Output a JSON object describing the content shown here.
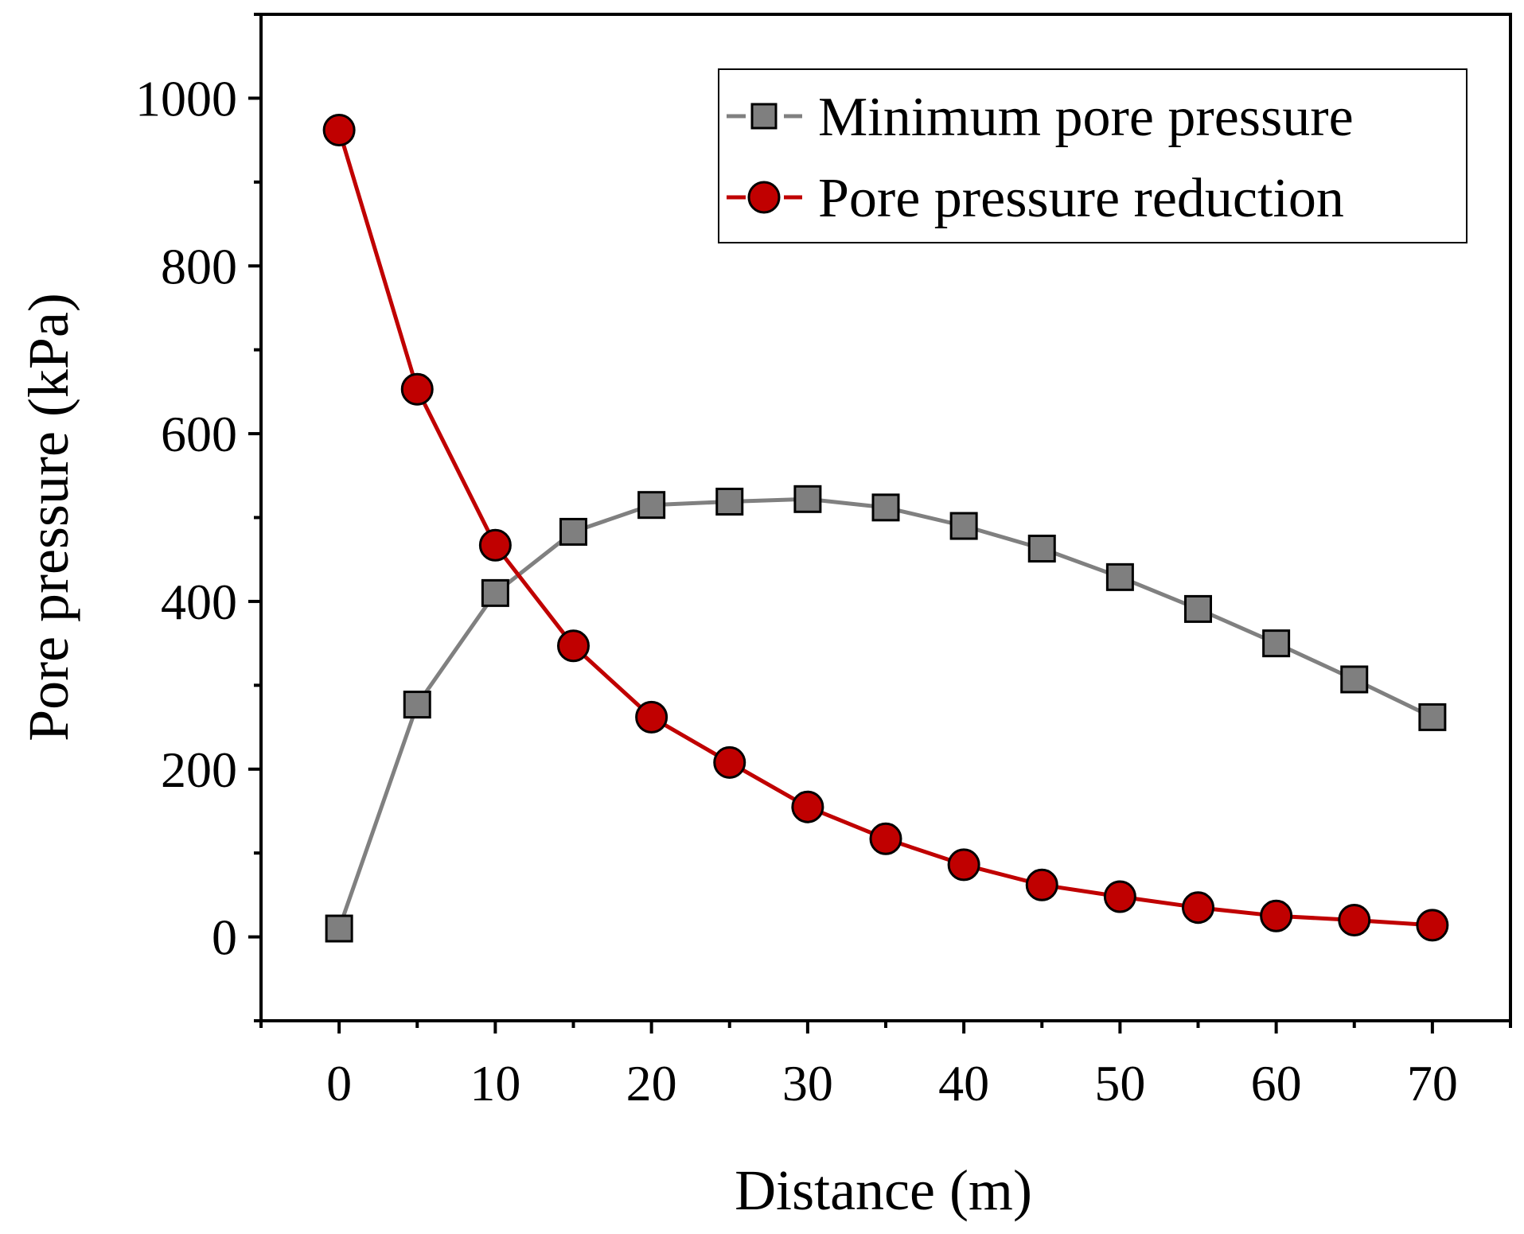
{
  "chart_data": {
    "type": "line",
    "title": "",
    "xlabel": "Distance (m)",
    "ylabel": "Pore pressure (kPa)",
    "xlim": [
      -5,
      75
    ],
    "ylim": [
      -100,
      1100
    ],
    "xticks": [
      0,
      10,
      20,
      30,
      40,
      50,
      60,
      70
    ],
    "yticks": [
      0,
      200,
      400,
      600,
      800,
      1000
    ],
    "legend_position": "top-right",
    "grid": false,
    "x": [
      0,
      5,
      10,
      15,
      20,
      25,
      30,
      35,
      40,
      45,
      50,
      55,
      60,
      65,
      70
    ],
    "series": [
      {
        "name": "Minimum pore pressure",
        "marker": "square",
        "color": "#808080",
        "marker_color": "#7f7f7f",
        "values": [
          10,
          277,
          410,
          483,
          515,
          519,
          522,
          512,
          490,
          463,
          429,
          391,
          350,
          307,
          262
        ]
      },
      {
        "name": "Pore pressure reduction",
        "marker": "circle",
        "color": "#c00000",
        "marker_color": "#c00000",
        "values": [
          962,
          653,
          467,
          347,
          262,
          208,
          155,
          117,
          86,
          62,
          48,
          35,
          25,
          20,
          14
        ]
      }
    ]
  }
}
